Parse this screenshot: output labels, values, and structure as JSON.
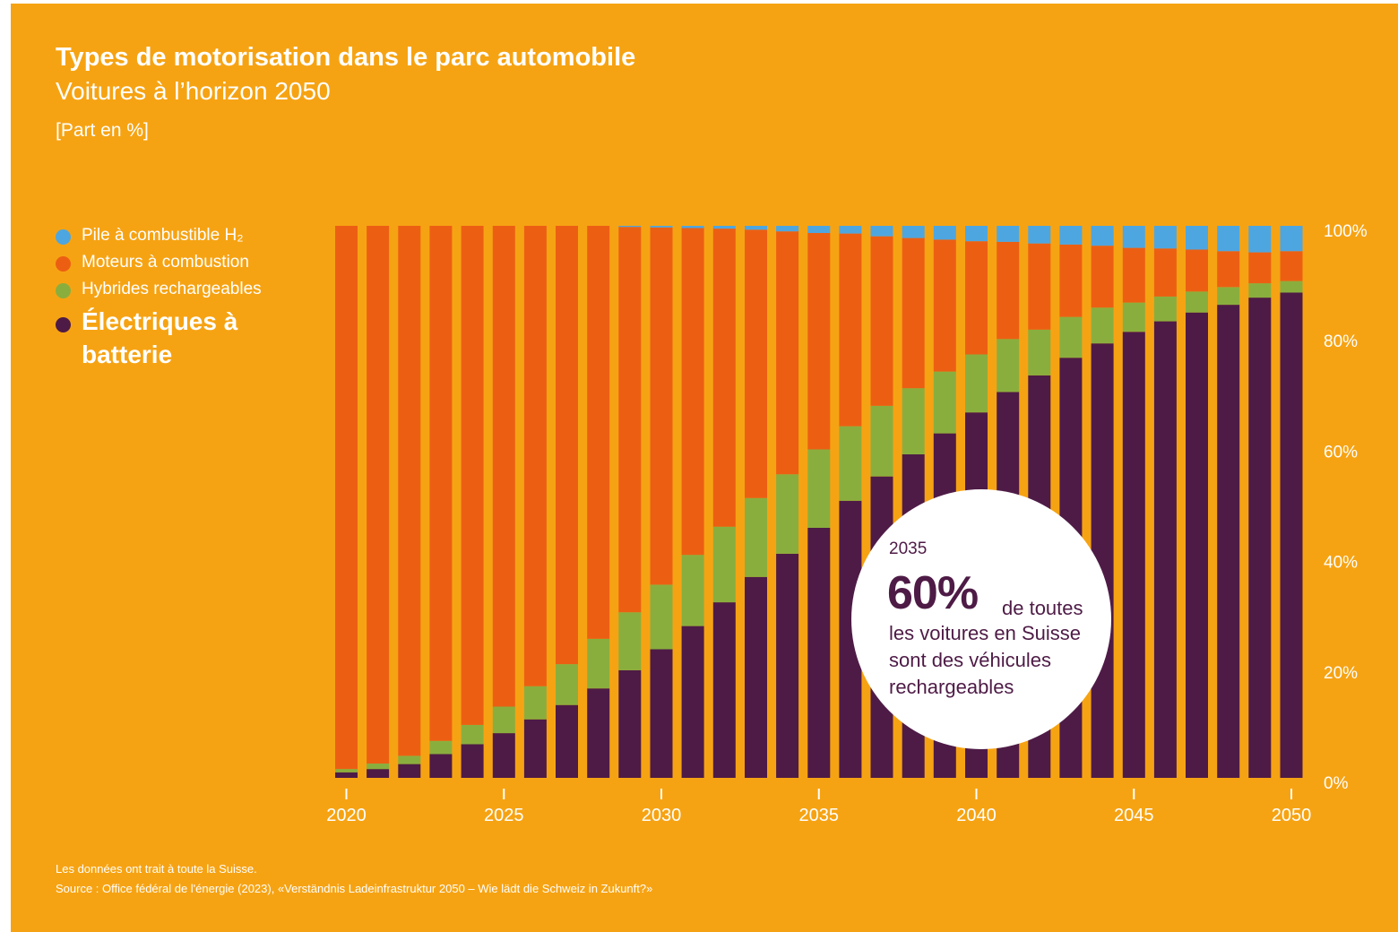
{
  "header": {
    "title": "Types de motorisation dans le parc automobile",
    "subtitle": "Voitures à l’horizon 2050",
    "unit": "[Part en %]"
  },
  "legend": [
    {
      "label": "Pile à combustible H₂",
      "color": "#4EA6E0"
    },
    {
      "label": "Moteurs à combustion",
      "color": "#EC5F13"
    },
    {
      "label": "Hybrides rechargeables",
      "color": "#8AAE3E"
    },
    {
      "label": "Électriques à batterie",
      "color": "#4E1B46"
    }
  ],
  "callout": {
    "year": "2035",
    "value": "60%",
    "text_after": "de toutes",
    "text_rest": "les voitures en Suisse sont des véhicules rechargeables"
  },
  "footer": {
    "note": "Les données ont trait à toute la Suisse.",
    "source": "Source : Office fédéral de l'énergie (2023), «Verständnis Ladeinfrastruktur 2050 – Wie lädt die Schweiz in Zukunft?»"
  },
  "chart_data": {
    "type": "bar",
    "stacked": true,
    "x": [
      2020,
      2021,
      2022,
      2023,
      2024,
      2025,
      2026,
      2027,
      2028,
      2029,
      2030,
      2031,
      2032,
      2033,
      2034,
      2035,
      2036,
      2037,
      2038,
      2039,
      2040,
      2041,
      2042,
      2043,
      2044,
      2045,
      2046,
      2047,
      2048,
      2049,
      2050
    ],
    "x_ticks": [
      2020,
      2025,
      2030,
      2035,
      2040,
      2045,
      2050
    ],
    "y_ticks": [
      "0%",
      "20%",
      "40%",
      "60%",
      "80%",
      "100%"
    ],
    "ylim": [
      0,
      100
    ],
    "y_axis_side": "right",
    "grid": false,
    "series": [
      {
        "name": "Électriques à batterie",
        "color": "#4E1B46",
        "values": [
          1,
          1.6,
          2.5,
          4.3,
          6.1,
          8.1,
          10.6,
          13.2,
          16.2,
          19.5,
          23.3,
          27.5,
          31.8,
          36.4,
          40.6,
          45.3,
          50.2,
          54.6,
          58.6,
          62.4,
          66.2,
          69.9,
          72.9,
          76.1,
          78.7,
          80.8,
          82.7,
          84.3,
          85.7,
          87,
          87.9
        ]
      },
      {
        "name": "Hybrides rechargeables",
        "color": "#8AAE3E",
        "values": [
          0.6,
          1,
          1.5,
          2.4,
          3.5,
          4.8,
          6,
          7.4,
          9,
          10.5,
          11.7,
          12.9,
          13.7,
          14.3,
          14.4,
          14.2,
          13.5,
          12.8,
          12,
          11.2,
          10.5,
          9.6,
          8.3,
          7.4,
          6.5,
          5.3,
          4.5,
          3.8,
          3.2,
          2.6,
          2.1
        ]
      },
      {
        "name": "Moteurs à combustion",
        "color": "#EC5F13",
        "values": [
          98.4,
          97.4,
          96,
          93.3,
          90.4,
          87.1,
          83.4,
          79.4,
          74.8,
          69.8,
          64.7,
          59.2,
          54,
          48.6,
          44,
          39.2,
          34.9,
          30.7,
          27.2,
          23.9,
          20.5,
          17.6,
          15.6,
          13.1,
          11.2,
          9.9,
          8.7,
          7.6,
          6.5,
          5.6,
          5.4
        ]
      },
      {
        "name": "Pile à combustible H₂",
        "color": "#4EA6E0",
        "values": [
          0,
          0,
          0,
          0,
          0,
          0,
          0,
          0,
          0,
          0.2,
          0.3,
          0.4,
          0.5,
          0.7,
          1,
          1.3,
          1.4,
          1.9,
          2.2,
          2.5,
          2.8,
          2.9,
          3.2,
          3.4,
          3.6,
          4,
          4.1,
          4.3,
          4.6,
          4.8,
          4.6
        ]
      }
    ]
  }
}
